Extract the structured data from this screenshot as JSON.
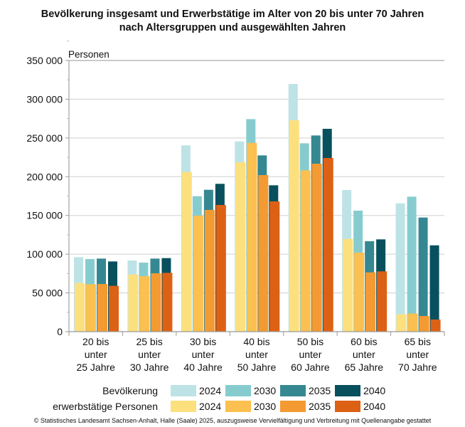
{
  "chart_data": {
    "type": "bar",
    "title": [
      "Bevölkerung insgesamt und Erwerbstätige im Alter von 20 bis unter 70 Jahren",
      "nach Altersgruppen und ausgewählten Jahren"
    ],
    "ylabel": "Personen",
    "ylim": [
      0,
      350000
    ],
    "yticks": [
      "0",
      "50 000",
      "100 000",
      "150 000",
      "200 000",
      "250 000",
      "300 000",
      "350 000"
    ],
    "grid": true,
    "categories": [
      [
        "20 bis",
        "unter",
        "25 Jahre"
      ],
      [
        "25 bis",
        "unter",
        "30 Jahre"
      ],
      [
        "30 bis",
        "unter",
        "40 Jahre"
      ],
      [
        "40 bis",
        "unter",
        "50 Jahre"
      ],
      [
        "50 bis",
        "unter",
        "60 Jahre"
      ],
      [
        "60 bis",
        "unter",
        "65 Jahre"
      ],
      [
        "65 bis",
        "unter",
        "70 Jahre"
      ]
    ],
    "groups": [
      {
        "name": "Bevölkerung",
        "series": [
          {
            "name": "2024",
            "color": "#bde3e6",
            "values": [
              96100,
              91900,
              240400,
              245600,
              319700,
              182800,
              165600
            ]
          },
          {
            "name": "2030",
            "color": "#86cccf",
            "values": [
              93700,
              89100,
              174800,
              274300,
              243100,
              156200,
              174200
            ]
          },
          {
            "name": "2035",
            "color": "#358891",
            "values": [
              94300,
              94300,
              183100,
              227500,
              253200,
              116700,
              147300
            ]
          },
          {
            "name": "2040",
            "color": "#08505e",
            "values": [
              90600,
              94900,
              190800,
              188900,
              261800,
              119100,
              111400
            ]
          }
        ]
      },
      {
        "name": "erwerbstätige Personen",
        "series": [
          {
            "name": "2024",
            "color": "#fde07e",
            "values": [
              62800,
              73800,
              206100,
              218600,
              272800,
              119700,
              22400
            ]
          },
          {
            "name": "2030",
            "color": "#fbc04f",
            "values": [
              61200,
              71600,
              149700,
              243700,
              208200,
              102000,
              23300
            ]
          },
          {
            "name": "2035",
            "color": "#f39a32",
            "values": [
              61500,
              75300,
              157100,
              202100,
              216800,
              76500,
              20200
            ]
          },
          {
            "name": "2040",
            "color": "#dd6115",
            "values": [
              59100,
              75900,
              163500,
              168100,
              224100,
              77800,
              15600
            ]
          }
        ]
      }
    ],
    "legend_position": "bottom"
  },
  "footer": "© Statistisches Landesamt Sachsen-Anhalt, Halle (Saale) 2025, auszugsweise Vervielfältigung und Verbreitung mit Quellenangabe gestattet"
}
